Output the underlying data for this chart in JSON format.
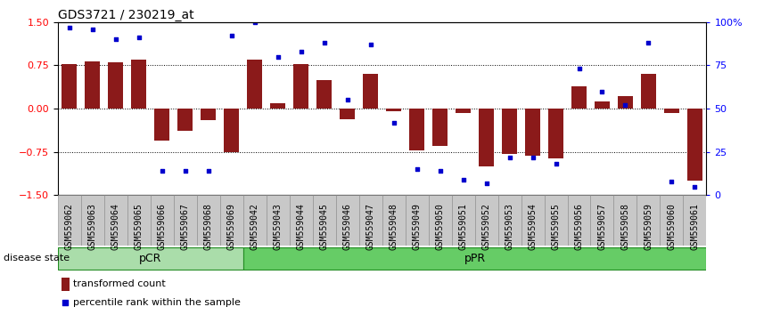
{
  "title": "GDS3721 / 230219_at",
  "samples": [
    "GSM559062",
    "GSM559063",
    "GSM559064",
    "GSM559065",
    "GSM559066",
    "GSM559067",
    "GSM559068",
    "GSM559069",
    "GSM559042",
    "GSM559043",
    "GSM559044",
    "GSM559045",
    "GSM559046",
    "GSM559047",
    "GSM559048",
    "GSM559049",
    "GSM559050",
    "GSM559051",
    "GSM559052",
    "GSM559053",
    "GSM559054",
    "GSM559055",
    "GSM559056",
    "GSM559057",
    "GSM559058",
    "GSM559059",
    "GSM559060",
    "GSM559061"
  ],
  "bar_values": [
    0.78,
    0.82,
    0.8,
    0.85,
    -0.55,
    -0.38,
    -0.2,
    -0.75,
    0.85,
    0.1,
    0.78,
    0.5,
    -0.18,
    0.6,
    -0.05,
    -0.72,
    -0.65,
    -0.08,
    -1.0,
    -0.78,
    -0.82,
    -0.86,
    0.38,
    0.12,
    0.22,
    0.6,
    -0.08,
    -1.25
  ],
  "percentile_values": [
    97,
    96,
    90,
    91,
    14,
    14,
    14,
    92,
    100,
    80,
    83,
    88,
    55,
    87,
    42,
    15,
    14,
    9,
    7,
    22,
    22,
    18,
    73,
    60,
    52,
    88,
    8,
    5
  ],
  "pcr_count": 8,
  "group_labels": [
    "pCR",
    "pPR"
  ],
  "pcr_color": "#aaddaa",
  "ppr_color": "#66cc66",
  "group_border_color": "#228B22",
  "bar_color": "#8B1A1A",
  "dot_color": "#0000CD",
  "ylim": [
    -1.5,
    1.5
  ],
  "yticks_left": [
    -1.5,
    -0.75,
    0.0,
    0.75,
    1.5
  ],
  "yticks_right": [
    0,
    25,
    50,
    75,
    100
  ],
  "right_tick_labels": [
    "0",
    "25",
    "50",
    "75",
    "100%"
  ],
  "dotted_lines": [
    -0.75,
    0.0,
    0.75
  ],
  "bar_width": 0.65,
  "legend_labels": [
    "transformed count",
    "percentile rank within the sample"
  ],
  "disease_state_label": "disease state",
  "title_fontsize": 10,
  "tick_fontsize": 7,
  "xtick_cell_color": "#C8C8C8",
  "xtick_border_color": "#888888"
}
